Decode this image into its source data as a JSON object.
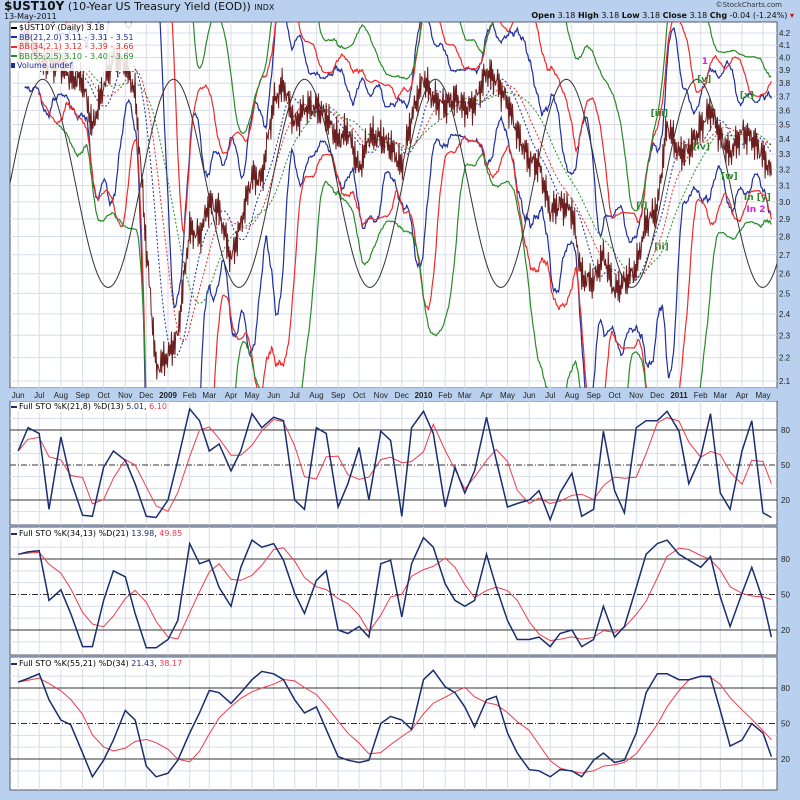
{
  "header": {
    "symbol": "$UST10Y",
    "description": "(10-Year US Treasury Yield (EOD))",
    "exchange": "INDX",
    "date": "13-May-2011",
    "watermark": "©StockCharts.com",
    "open_label": "Open",
    "open": "3.18",
    "high_label": "High",
    "high": "3.18",
    "low_label": "Low",
    "low": "3.18",
    "close_label": "Close",
    "close": "3.18",
    "chg_label": "Chg",
    "chg": "-0.04 (-1.24%)",
    "chg_icon": "down-triangle-icon"
  },
  "legend": {
    "price": "$UST10Y (Daily) 3.18",
    "bb21": "BB(21,2.0) 3.11 - 3.31 - 3.51",
    "bb34": "BB(34,2.1) 3.12 - 3.39 - 3.66",
    "bb55": "BB(55,2.5) 3.10 - 3.40 - 3.69",
    "volume": "Volume undef"
  },
  "colors": {
    "price": "#6b1e1e",
    "bb21": "#1f2f9c",
    "bb34": "#ee2a2a",
    "bb55": "#2a8a2a",
    "stoK": "#1a2d6e",
    "stoD": "#f03a4a",
    "cycle": "#333333",
    "grid": "#d7dde8"
  },
  "chart_data": [
    {
      "type": "line",
      "panel": "price",
      "yscale": "log",
      "ylim": [
        2.05,
        4.28
      ],
      "yticks": [
        2.1,
        2.2,
        2.3,
        2.4,
        2.5,
        2.6,
        2.7,
        2.8,
        2.9,
        3.0,
        3.1,
        3.2,
        3.3,
        3.4,
        3.5,
        3.6,
        3.7,
        3.8,
        3.9,
        4.0,
        4.1,
        4.2
      ],
      "xticks": [
        "Jun",
        "Jul",
        "Aug",
        "Sep",
        "Oct",
        "Nov",
        "Dec",
        "2009",
        "Feb",
        "Mar",
        "Apr",
        "May",
        "Jun",
        "Jul",
        "Aug",
        "Sep",
        "Oct",
        "Nov",
        "Dec",
        "2010",
        "Feb",
        "Mar",
        "Apr",
        "May",
        "Jun",
        "Jul",
        "Aug",
        "Sep",
        "Oct",
        "Nov",
        "Dec",
        "2011",
        "Feb",
        "Mar",
        "Apr",
        "May"
      ],
      "grid": true,
      "x": [
        "2008-06-01",
        "2008-06-15",
        "2008-07-01",
        "2008-07-15",
        "2008-08-01",
        "2008-08-15",
        "2008-09-01",
        "2008-09-15",
        "2008-10-01",
        "2008-10-15",
        "2008-11-01",
        "2008-11-15",
        "2008-12-01",
        "2008-12-15",
        "2009-01-01",
        "2009-01-15",
        "2009-02-01",
        "2009-02-15",
        "2009-03-01",
        "2009-03-15",
        "2009-04-01",
        "2009-04-15",
        "2009-05-01",
        "2009-05-15",
        "2009-06-01",
        "2009-06-15",
        "2009-07-01",
        "2009-07-15",
        "2009-08-01",
        "2009-08-15",
        "2009-09-01",
        "2009-09-15",
        "2009-10-01",
        "2009-10-15",
        "2009-11-01",
        "2009-11-15",
        "2009-12-01",
        "2009-12-15",
        "2010-01-01",
        "2010-01-15",
        "2010-02-01",
        "2010-02-15",
        "2010-03-01",
        "2010-03-15",
        "2010-04-01",
        "2010-04-15",
        "2010-05-01",
        "2010-05-15",
        "2010-06-01",
        "2010-06-15",
        "2010-07-01",
        "2010-07-15",
        "2010-08-01",
        "2010-08-15",
        "2010-09-01",
        "2010-09-15",
        "2010-10-01",
        "2010-10-15",
        "2010-11-01",
        "2010-11-15",
        "2010-12-01",
        "2010-12-15",
        "2011-01-01",
        "2011-01-15",
        "2011-02-01",
        "2011-02-15",
        "2011-03-01",
        "2011-03-15",
        "2011-04-01",
        "2011-04-15",
        "2011-05-01",
        "2011-05-13"
      ],
      "series": [
        {
          "name": "$UST10Y",
          "values": [
            4.05,
            4.2,
            3.97,
            3.95,
            3.95,
            3.84,
            3.82,
            3.47,
            3.78,
            4.0,
            3.95,
            3.72,
            2.73,
            2.15,
            2.21,
            2.3,
            2.84,
            2.8,
            3.0,
            2.95,
            2.67,
            2.87,
            3.16,
            3.14,
            3.66,
            3.79,
            3.5,
            3.62,
            3.62,
            3.56,
            3.39,
            3.46,
            3.19,
            3.42,
            3.41,
            3.35,
            3.21,
            3.55,
            3.84,
            3.68,
            3.64,
            3.69,
            3.61,
            3.65,
            3.89,
            3.82,
            3.66,
            3.44,
            3.26,
            3.23,
            2.94,
            2.99,
            2.95,
            2.58,
            2.56,
            2.7,
            2.51,
            2.56,
            2.63,
            2.88,
            2.96,
            3.5,
            3.3,
            3.33,
            3.48,
            3.61,
            3.42,
            3.3,
            3.45,
            3.41,
            3.29,
            3.18
          ]
        }
      ],
      "overlays": [
        {
          "type": "bollinger",
          "name": "BB(21,2.0)",
          "period": 21,
          "k": 2.0
        },
        {
          "type": "bollinger",
          "name": "BB(34,2.1)",
          "period": 34,
          "k": 2.1
        },
        {
          "type": "bollinger",
          "name": "BB(55,2.5)",
          "period": 55,
          "k": 2.5
        }
      ],
      "cycle": {
        "period_days": 187,
        "peak_date": "2008-07-06",
        "high": 3.83,
        "low": 2.53
      },
      "annotations": [
        {
          "text": "1",
          "date": "2011-02-07",
          "price": 3.95,
          "color": "#e020e0"
        },
        {
          "text": "[v]",
          "date": "2011-02-06",
          "price": 3.81,
          "color": "#2a8a2a"
        },
        {
          "text": "[iii]",
          "date": "2010-12-04",
          "price": 3.56,
          "color": "#2a8a2a"
        },
        {
          "text": "[iv]",
          "date": "2011-02-02",
          "price": 3.33,
          "color": "#2a8a2a"
        },
        {
          "text": "[x]",
          "date": "2011-04-08",
          "price": 3.69,
          "color": "#2a8a2a"
        },
        {
          "text": "[w]",
          "date": "2011-03-14",
          "price": 3.14,
          "color": "#2a8a2a"
        },
        {
          "text": "[i]",
          "date": "2010-11-09",
          "price": 2.96,
          "color": "#2a8a2a"
        },
        {
          "text": "[ii]",
          "date": "2010-12-07",
          "price": 2.73,
          "color": "#2a8a2a"
        },
        {
          "text": "In [y]",
          "date": "2011-04-23",
          "price": 3.01,
          "color": "#2a8a2a"
        },
        {
          "text": "In 2",
          "date": "2011-04-21",
          "price": 2.94,
          "color": "#e020e0"
        }
      ]
    },
    {
      "type": "line",
      "panel": "sto1",
      "title": "Full STO %K(21,8) %D(13)",
      "k_last": "5.01",
      "d_last": "6.10",
      "ylim": [
        0,
        100
      ],
      "yticks": [
        20,
        50,
        80
      ],
      "k": [
        62,
        82,
        77,
        12,
        74,
        37,
        7,
        6,
        48,
        62,
        54,
        34,
        6,
        5,
        20,
        54,
        98,
        88,
        62,
        68,
        45,
        62,
        94,
        82,
        91,
        88,
        20,
        12,
        82,
        77,
        14,
        34,
        65,
        20,
        79,
        71,
        6,
        82,
        96,
        77,
        14,
        48,
        26,
        45,
        91,
        54,
        14,
        17,
        20,
        28,
        3,
        26,
        43,
        6,
        12,
        79,
        28,
        9,
        82,
        88,
        88,
        96,
        79,
        34,
        57,
        94,
        26,
        12,
        62,
        88,
        9,
        5
      ]
    },
    {
      "type": "line",
      "panel": "sto2",
      "title": "Full STO %K(34,13) %D(21)",
      "k_last": "13.98",
      "d_last": "49.85",
      "ylim": [
        0,
        100
      ],
      "yticks": [
        20,
        50,
        80
      ],
      "k": [
        84,
        86,
        87,
        45,
        54,
        34,
        6,
        6,
        45,
        70,
        65,
        34,
        5,
        5,
        12,
        28,
        93,
        76,
        79,
        56,
        40,
        73,
        96,
        90,
        93,
        79,
        51,
        34,
        62,
        70,
        20,
        17,
        23,
        14,
        76,
        79,
        31,
        76,
        98,
        90,
        59,
        45,
        40,
        45,
        84,
        56,
        28,
        12,
        12,
        14,
        6,
        17,
        20,
        6,
        12,
        40,
        14,
        23,
        56,
        84,
        93,
        96,
        84,
        79,
        73,
        82,
        48,
        23,
        51,
        73,
        45,
        14
      ]
    },
    {
      "type": "line",
      "panel": "sto3",
      "title": "Full STO %K(55,21) %D(34)",
      "k_last": "21.43",
      "d_last": "38.17",
      "ylim": [
        0,
        100
      ],
      "yticks": [
        20,
        50,
        80
      ],
      "k": [
        85,
        88,
        92,
        70,
        53,
        49,
        25,
        5,
        19,
        36,
        61,
        53,
        14,
        5,
        8,
        19,
        42,
        59,
        78,
        76,
        67,
        76,
        87,
        94,
        92,
        87,
        70,
        59,
        64,
        45,
        22,
        19,
        17,
        19,
        50,
        56,
        53,
        45,
        87,
        95,
        81,
        76,
        64,
        47,
        70,
        73,
        42,
        25,
        11,
        10,
        5,
        11,
        10,
        5,
        19,
        25,
        17,
        19,
        42,
        76,
        92,
        92,
        87,
        87,
        90,
        90,
        61,
        31,
        36,
        50,
        42,
        22
      ]
    }
  ]
}
